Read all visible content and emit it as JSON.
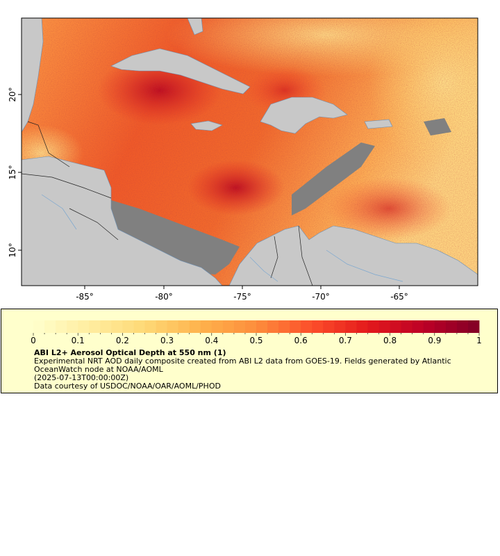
{
  "map": {
    "x_ticks": [
      "-85°",
      "-80°",
      "-75°",
      "-70°",
      "-65°"
    ],
    "y_ticks": [
      "20°",
      "15°",
      "10°"
    ],
    "colors": {
      "land": "#c8c8c8",
      "no_data": "#808080",
      "border": "#222222",
      "river": "#7ba7d0",
      "aod_low": "#ffffcc",
      "aod_mid": "#fd8d3c",
      "aod_high": "#800026"
    }
  },
  "legend": {
    "tick_labels": [
      "0",
      "0.1",
      "0.2",
      "0.3",
      "0.4",
      "0.5",
      "0.6",
      "0.7",
      "0.8",
      "0.9",
      "1"
    ],
    "title": "ABI L2+ Aerosol Optical Depth at 550 nm (1)",
    "description_line1": "Experimental NRT AOD daily composite created from ABI L2 data from GOES-19. Fields generated by Atlantic",
    "description_line2": "OceanWatch node at NOAA/AOML",
    "date": "(2025-07-13T00:00:00Z)",
    "credit": "Data courtesy of USDOC/NOAA/OAR/AOML/PHOD",
    "colormap": [
      "#ffffcc",
      "#ffeda0",
      "#fed976",
      "#feb24c",
      "#fd8d3c",
      "#fc4e2a",
      "#e31a1c",
      "#bd0026",
      "#800026"
    ]
  }
}
